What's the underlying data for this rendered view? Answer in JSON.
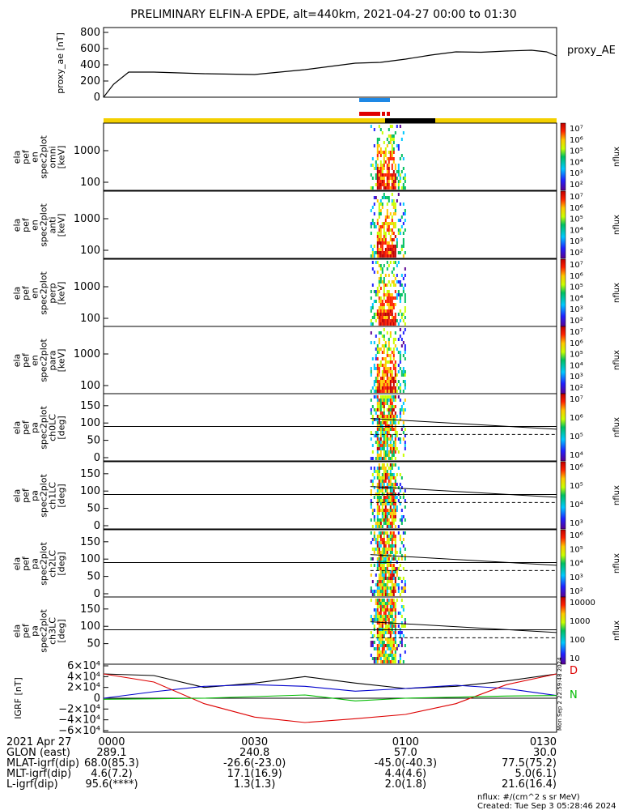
{
  "title": "PRELIMINARY ELFIN-A EPDE, alt=440km, 2021-04-27 00:00 to 01:30",
  "colors": {
    "proxy_line": "#000000",
    "bar_blue": "#1e88e5",
    "bar_red": "#e00000",
    "bar_yellow": "#f4d000",
    "bar_black": "#000000",
    "grf_x": "#000000",
    "grf_y": "#0000cc",
    "grf_z": "#00bb00",
    "grf_red": "#dd0000"
  },
  "proxy_panel": {
    "ylabel": "proxy_ae [nT]",
    "yticks": [
      "0",
      "200",
      "400",
      "600",
      "800"
    ],
    "right_label": "proxy_AE"
  },
  "spec_panels": [
    {
      "ylabel": [
        "ela",
        "pef",
        "en",
        "spec2plot",
        "omni"
      ],
      "unit": "[keV]",
      "yticks": [
        "100",
        "1000"
      ],
      "cbar_ticks": [
        "10⁷",
        "10⁶",
        "10⁵",
        "10⁴",
        "10³",
        "10²"
      ],
      "cbar_label": "nflux"
    },
    {
      "ylabel": [
        "ela",
        "pef",
        "en",
        "spec2plot",
        "anti"
      ],
      "unit": "[keV]",
      "yticks": [
        "100",
        "1000"
      ],
      "cbar_ticks": [
        "10⁷",
        "10⁶",
        "10⁵",
        "10⁴",
        "10³",
        "10²"
      ],
      "cbar_label": "nflux"
    },
    {
      "ylabel": [
        "ela",
        "pef",
        "en",
        "spec2plot",
        "perp"
      ],
      "unit": "[keV]",
      "yticks": [
        "100",
        "1000"
      ],
      "cbar_ticks": [
        "10⁷",
        "10⁶",
        "10⁵",
        "10⁴",
        "10³",
        "10²"
      ],
      "cbar_label": "nflux"
    },
    {
      "ylabel": [
        "ela",
        "pef",
        "en",
        "spec2plot",
        "para"
      ],
      "unit": "[keV]",
      "yticks": [
        "100",
        "1000"
      ],
      "cbar_ticks": [
        "10⁷",
        "10⁶",
        "10⁵",
        "10⁴",
        "10³",
        "10²"
      ],
      "cbar_label": "nflux"
    }
  ],
  "pa_panels": [
    {
      "ylabel": [
        "ela",
        "pef",
        "pa",
        "spec2plot",
        "ch0LC"
      ],
      "unit": "[deg]",
      "yticks": [
        "0",
        "50",
        "100",
        "150"
      ],
      "cbar_ticks": [
        "10⁷",
        "10⁶",
        "10⁵",
        "10⁴"
      ],
      "cbar_label": "nflux"
    },
    {
      "ylabel": [
        "ela",
        "pef",
        "pa",
        "spec2plot",
        "ch1LC"
      ],
      "unit": "[deg]",
      "yticks": [
        "0",
        "50",
        "100",
        "150"
      ],
      "cbar_ticks": [
        "10⁶",
        "10⁵",
        "10⁴",
        "10³"
      ],
      "cbar_label": "nflux"
    },
    {
      "ylabel": [
        "ela",
        "pef",
        "pa",
        "spec2plot",
        "ch2LC"
      ],
      "unit": "[deg]",
      "yticks": [
        "0",
        "50",
        "100",
        "150"
      ],
      "cbar_ticks": [
        "10⁶",
        "10⁵",
        "10⁴",
        "10³",
        "10²"
      ],
      "cbar_label": "nflux"
    },
    {
      "ylabel": [
        "ela",
        "pef",
        "pa",
        "spec2plot",
        "ch3LC"
      ],
      "unit": "[deg]",
      "yticks": [
        "50",
        "100",
        "150"
      ],
      "cbar_ticks": [
        "10000",
        "1000",
        "100",
        "10"
      ],
      "cbar_label": "nflux"
    }
  ],
  "grf_panel": {
    "ylabel": "IGRF [nT]",
    "yticks": [
      "6×10⁴",
      "4×10⁴",
      "2×10⁴",
      "0",
      "−2×10⁴",
      "−4×10⁴",
      "−6×10⁴"
    ],
    "side_label_d": "D",
    "side_label_n": "N",
    "stamp": "Mon Sep 2 22:59:48 2024"
  },
  "footer": {
    "rows": [
      [
        "2021 Apr 27",
        "0000",
        "0030",
        "0100",
        "0130"
      ],
      [
        "GLON (east)",
        "289.1",
        "240.8",
        "57.0",
        "30.0"
      ],
      [
        "MLAT-igrf(dip)",
        "68.0(85.3)",
        "-26.6(-23.0)",
        "-45.0(-40.3)",
        "77.5(75.2)"
      ],
      [
        "MLT-igrf(dip)",
        "4.6(7.2)",
        "17.1(16.9)",
        "4.4(4.6)",
        "5.0(6.1)"
      ],
      [
        "L-igrf(dip)",
        "95.6(****)",
        "1.3(1.3)",
        "2.0(1.8)",
        "21.6(16.4)"
      ]
    ],
    "nflux_note": "nflux: #/(cm^2 s sr MeV)",
    "created": "Created: Tue Sep  3 05:28:46 2024"
  },
  "chart_data": [
    {
      "type": "line",
      "name": "proxy_AE",
      "x": [
        "00:00",
        "00:02",
        "00:05",
        "00:10",
        "00:20",
        "00:30",
        "00:40",
        "00:50",
        "00:55",
        "01:00",
        "01:05",
        "01:10",
        "01:15",
        "01:20",
        "01:25",
        "01:28",
        "01:30"
      ],
      "y": [
        0,
        160,
        310,
        310,
        290,
        280,
        340,
        420,
        430,
        470,
        520,
        560,
        555,
        570,
        580,
        560,
        510
      ],
      "ylim": [
        0,
        800
      ]
    },
    {
      "type": "heatmap",
      "name": "ela pef en spec2plot omni",
      "yscale": "log",
      "ylim": [
        60,
        6000
      ],
      "zlim": [
        "10^2",
        "10^7"
      ],
      "data_window": [
        "00:53",
        "01:00"
      ]
    },
    {
      "type": "line",
      "name": "IGRF",
      "x": [
        "00:00",
        "00:10",
        "00:20",
        "00:30",
        "00:40",
        "00:50",
        "01:00",
        "01:10",
        "01:20",
        "01:30"
      ],
      "series": [
        {
          "values": [
            45000,
            42000,
            20000,
            28000,
            40000,
            28000,
            18000,
            22000,
            32000,
            45000
          ]
        },
        {
          "values": [
            0,
            12000,
            22000,
            25000,
            22000,
            13000,
            18000,
            24000,
            18000,
            5000
          ]
        },
        {
          "values": [
            45000,
            30000,
            -10000,
            -35000,
            -45000,
            -38000,
            -30000,
            -10000,
            25000,
            45000
          ]
        },
        {
          "values": [
            -2000,
            -1000,
            0,
            3000,
            6000,
            -5000,
            0,
            2000,
            4000,
            5000
          ]
        }
      ],
      "ylim": [
        -60000,
        60000
      ]
    }
  ]
}
